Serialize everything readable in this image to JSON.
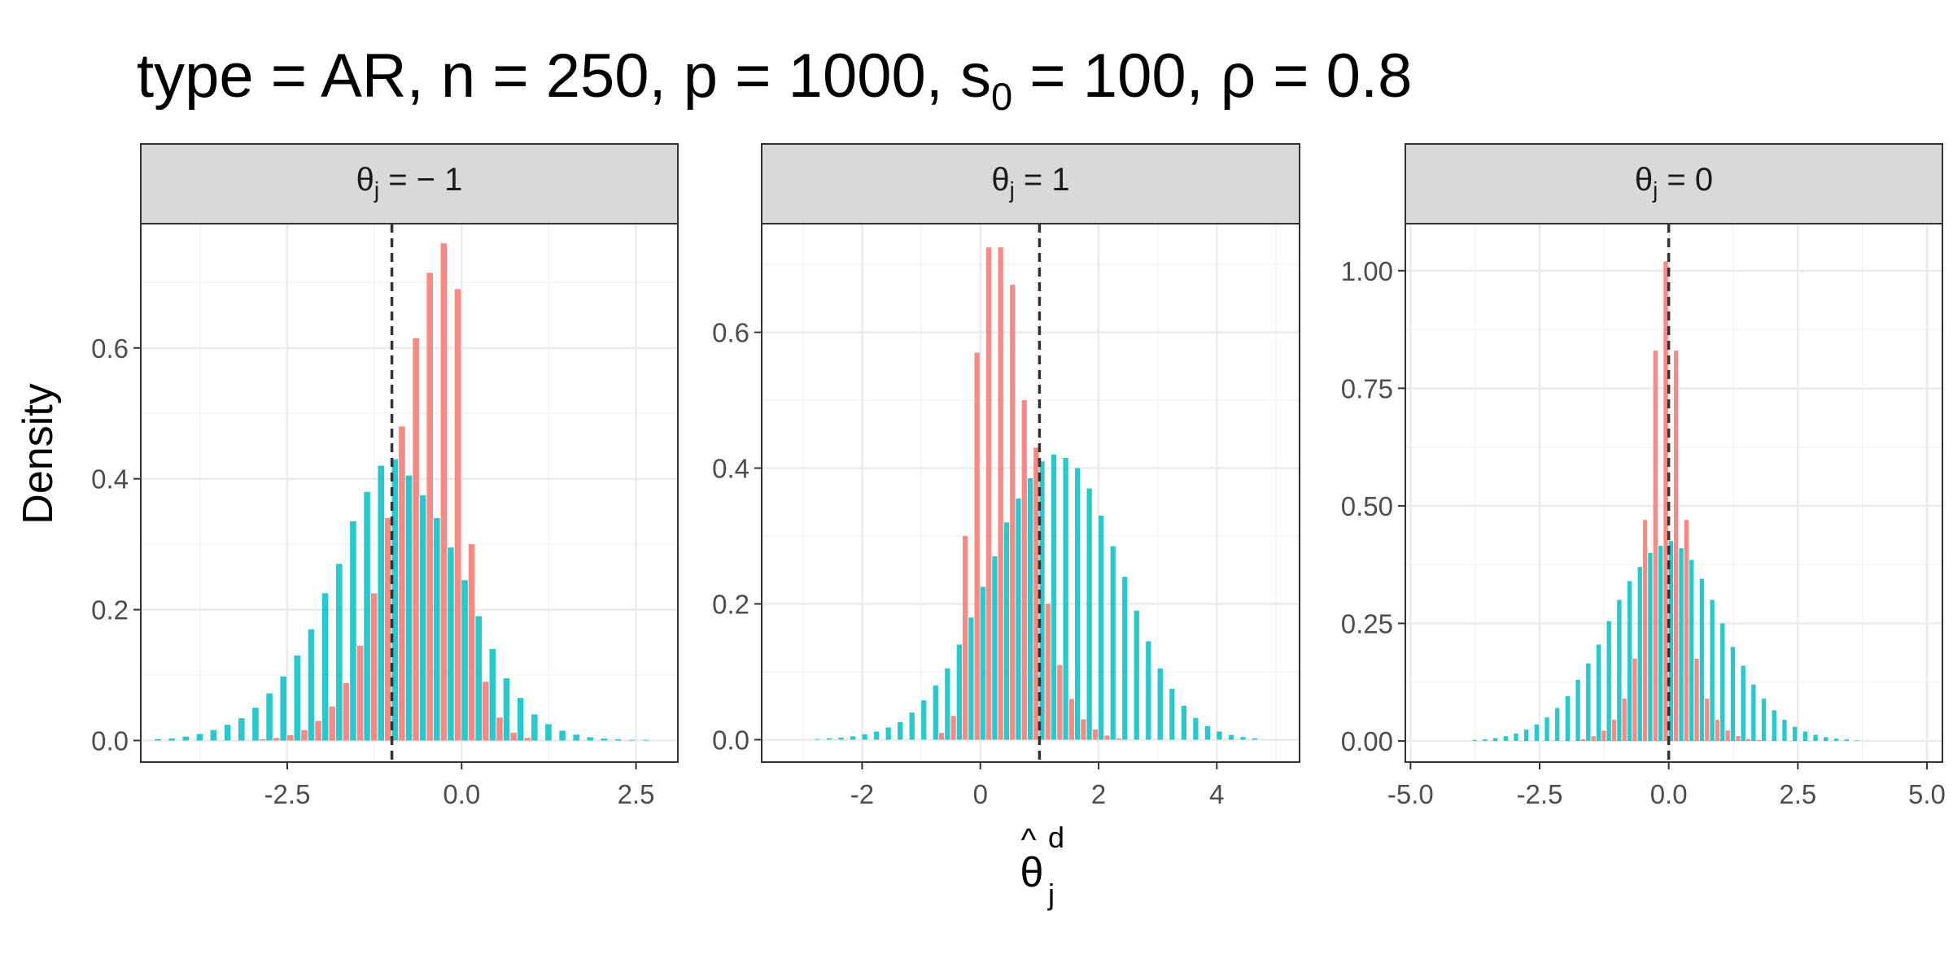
{
  "title": {
    "text_prefix": "type = AR, n = 250, p = 1000, s",
    "subscript": "0",
    "text_suffix": " = 100, ρ = 0.8"
  },
  "ylabel": "Density",
  "xlabel": {
    "base": "θ",
    "subscript": "j",
    "superscript": "d"
  },
  "colors": {
    "red": "#F8766D",
    "teal": "#00BFC4",
    "grid_major": "#EBEBEB",
    "grid_minor": "#F3F3F3",
    "strip_bg": "#D9D9D9",
    "border": "#333333",
    "vline": "#333333"
  },
  "chart_data": [
    {
      "type": "bar",
      "facet": {
        "symbol": "θ",
        "subscript": "j",
        "rest": " = − 1"
      },
      "xlim": [
        -4.6,
        3.1
      ],
      "ylim": [
        -0.033,
        0.79
      ],
      "xticks": [
        -2.5,
        0.0,
        2.5
      ],
      "xtick_labels": [
        "-2.5",
        "0.0",
        "2.5"
      ],
      "yticks": [
        0.0,
        0.2,
        0.4,
        0.6
      ],
      "ytick_labels": [
        "0.0",
        "0.2",
        "0.4",
        "0.6"
      ],
      "vline": -1,
      "series": [
        {
          "color": "teal",
          "bin_width": 0.2,
          "x": [
            -4.3,
            -4.1,
            -3.9,
            -3.7,
            -3.5,
            -3.3,
            -3.1,
            -2.9,
            -2.7,
            -2.5,
            -2.3,
            -2.1,
            -1.9,
            -1.7,
            -1.5,
            -1.3,
            -1.1,
            -0.9,
            -0.7,
            -0.5,
            -0.3,
            -0.1,
            0.1,
            0.3,
            0.5,
            0.7,
            0.9,
            1.1,
            1.3,
            1.5,
            1.7,
            1.9,
            2.1,
            2.3,
            2.5,
            2.7
          ],
          "values": [
            0.002,
            0.003,
            0.006,
            0.01,
            0.016,
            0.024,
            0.034,
            0.05,
            0.072,
            0.098,
            0.13,
            0.17,
            0.225,
            0.27,
            0.335,
            0.38,
            0.42,
            0.43,
            0.405,
            0.375,
            0.34,
            0.295,
            0.245,
            0.19,
            0.14,
            0.095,
            0.065,
            0.04,
            0.025,
            0.015,
            0.009,
            0.005,
            0.003,
            0.002,
            0.001,
            0.001
          ]
        },
        {
          "color": "red",
          "bin_width": 0.2,
          "x": [
            -2.9,
            -2.7,
            -2.5,
            -2.3,
            -2.1,
            -1.9,
            -1.7,
            -1.5,
            -1.3,
            -1.1,
            -0.9,
            -0.7,
            -0.5,
            -0.3,
            -0.1,
            0.1,
            0.3,
            0.5,
            0.7,
            0.9
          ],
          "values": [
            0.002,
            0.004,
            0.008,
            0.016,
            0.03,
            0.052,
            0.088,
            0.145,
            0.225,
            0.34,
            0.48,
            0.615,
            0.715,
            0.76,
            0.69,
            0.3,
            0.09,
            0.035,
            0.012,
            0.004
          ]
        }
      ]
    },
    {
      "type": "bar",
      "facet": {
        "symbol": "θ",
        "subscript": "j",
        "rest": " = 1"
      },
      "xlim": [
        -3.7,
        5.4
      ],
      "ylim": [
        -0.033,
        0.76
      ],
      "xticks": [
        -2,
        0,
        2,
        4
      ],
      "xtick_labels": [
        "-2",
        "0",
        "2",
        "4"
      ],
      "yticks": [
        0.0,
        0.2,
        0.4,
        0.6
      ],
      "ytick_labels": [
        "0.0",
        "0.2",
        "0.4",
        "0.6"
      ],
      "vline": 1,
      "series": [
        {
          "color": "teal",
          "bin_width": 0.2,
          "x": [
            -2.7,
            -2.5,
            -2.3,
            -2.1,
            -1.9,
            -1.7,
            -1.5,
            -1.3,
            -1.1,
            -0.9,
            -0.7,
            -0.5,
            -0.3,
            -0.1,
            0.1,
            0.3,
            0.5,
            0.7,
            0.9,
            1.1,
            1.3,
            1.5,
            1.7,
            1.9,
            2.1,
            2.3,
            2.5,
            2.7,
            2.9,
            3.1,
            3.3,
            3.5,
            3.7,
            3.9,
            4.1,
            4.3,
            4.5,
            4.7
          ],
          "values": [
            0.001,
            0.002,
            0.003,
            0.005,
            0.008,
            0.012,
            0.018,
            0.026,
            0.04,
            0.058,
            0.08,
            0.105,
            0.14,
            0.18,
            0.225,
            0.27,
            0.32,
            0.355,
            0.385,
            0.41,
            0.42,
            0.415,
            0.4,
            0.37,
            0.33,
            0.285,
            0.24,
            0.19,
            0.145,
            0.105,
            0.075,
            0.05,
            0.032,
            0.02,
            0.012,
            0.007,
            0.004,
            0.002
          ]
        },
        {
          "color": "red",
          "bin_width": 0.2,
          "x": [
            -0.7,
            -0.5,
            -0.3,
            -0.1,
            0.1,
            0.3,
            0.5,
            0.7,
            0.9,
            1.1,
            1.3,
            1.5,
            1.7,
            1.9,
            2.1,
            2.3
          ],
          "values": [
            0.01,
            0.035,
            0.3,
            0.57,
            0.725,
            0.725,
            0.67,
            0.5,
            0.43,
            0.2,
            0.11,
            0.06,
            0.03,
            0.015,
            0.006,
            0.002
          ]
        }
      ]
    },
    {
      "type": "bar",
      "facet": {
        "symbol": "θ",
        "subscript": "j",
        "rest": " = 0"
      },
      "xlim": [
        -5.1,
        5.3
      ],
      "ylim": [
        -0.045,
        1.1
      ],
      "xticks": [
        -5.0,
        -2.5,
        0.0,
        2.5,
        5.0
      ],
      "xtick_labels": [
        "-5.0",
        "-2.5",
        "0.0",
        "2.5",
        "5.0"
      ],
      "yticks": [
        0.0,
        0.25,
        0.5,
        0.75,
        1.0
      ],
      "ytick_labels": [
        "0.00",
        "0.25",
        "0.50",
        "0.75",
        "1.00"
      ],
      "vline": 0,
      "series": [
        {
          "color": "teal",
          "bin_width": 0.2,
          "x": [
            -3.7,
            -3.5,
            -3.3,
            -3.1,
            -2.9,
            -2.7,
            -2.5,
            -2.3,
            -2.1,
            -1.9,
            -1.7,
            -1.5,
            -1.3,
            -1.1,
            -0.9,
            -0.7,
            -0.5,
            -0.3,
            -0.1,
            0.1,
            0.3,
            0.5,
            0.7,
            0.9,
            1.1,
            1.3,
            1.5,
            1.7,
            1.9,
            2.1,
            2.3,
            2.5,
            2.7,
            2.9,
            3.1,
            3.3,
            3.5,
            3.7
          ],
          "values": [
            0.002,
            0.003,
            0.006,
            0.01,
            0.016,
            0.024,
            0.035,
            0.05,
            0.07,
            0.095,
            0.13,
            0.165,
            0.205,
            0.255,
            0.3,
            0.34,
            0.37,
            0.4,
            0.415,
            0.425,
            0.41,
            0.385,
            0.345,
            0.3,
            0.25,
            0.2,
            0.16,
            0.12,
            0.09,
            0.065,
            0.045,
            0.03,
            0.02,
            0.013,
            0.008,
            0.005,
            0.003,
            0.001
          ]
        },
        {
          "color": "red",
          "bin_width": 0.2,
          "x": [
            -1.7,
            -1.5,
            -1.3,
            -1.1,
            -0.9,
            -0.7,
            -0.5,
            -0.3,
            -0.1,
            0.1,
            0.3,
            0.5,
            0.7,
            0.9,
            1.1,
            1.3,
            1.5,
            1.7
          ],
          "values": [
            0.004,
            0.01,
            0.022,
            0.045,
            0.09,
            0.175,
            0.47,
            0.83,
            1.02,
            0.83,
            0.47,
            0.175,
            0.09,
            0.045,
            0.022,
            0.01,
            0.004,
            0.002
          ]
        }
      ]
    }
  ]
}
